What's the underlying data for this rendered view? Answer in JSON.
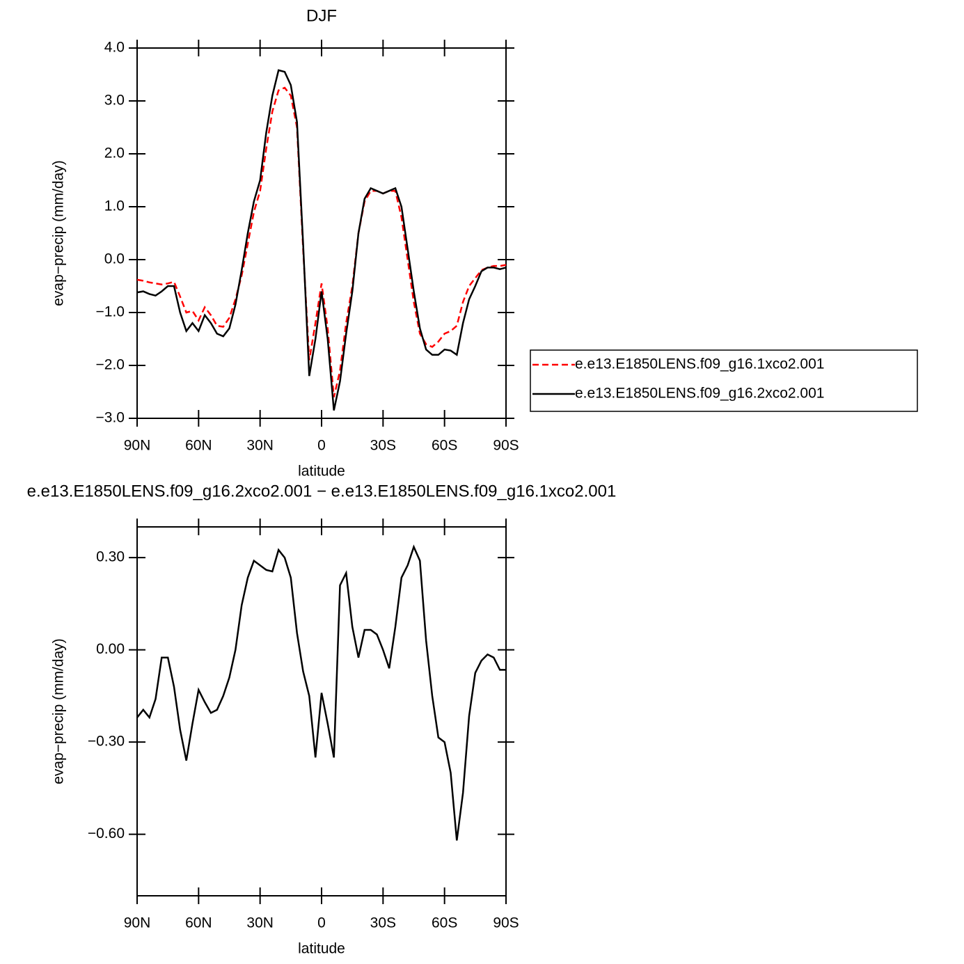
{
  "chart_data": [
    {
      "type": "line",
      "title": "DJF",
      "x_label": "latitude",
      "y_label": "evap−precip (mm/day)",
      "x": [
        90,
        87,
        84,
        81,
        78,
        75,
        72,
        69,
        66,
        63,
        60,
        57,
        54,
        51,
        48,
        45,
        42,
        39,
        36,
        33,
        30,
        27,
        24,
        21,
        18,
        15,
        12,
        9,
        6,
        3,
        0,
        -3,
        -6,
        -9,
        -12,
        -15,
        -18,
        -21,
        -24,
        -27,
        -30,
        -33,
        -36,
        -39,
        -42,
        -45,
        -48,
        -51,
        -54,
        -57,
        -60,
        -63,
        -66,
        -69,
        -72,
        -75,
        -78,
        -81,
        -84,
        -87,
        -90
      ],
      "xlim": [
        90,
        -90
      ],
      "xticks": [
        {
          "value": 90,
          "label": "90N"
        },
        {
          "value": 60,
          "label": "60N"
        },
        {
          "value": 30,
          "label": "30N"
        },
        0,
        {
          "value": -30,
          "label": "30S"
        },
        {
          "value": -60,
          "label": "60S"
        },
        {
          "value": -90,
          "label": "90S"
        }
      ],
      "ylim": [
        -3,
        4
      ],
      "yticks": [
        {
          "value": 4,
          "label": "4.0"
        },
        {
          "value": 3,
          "label": "3.0"
        },
        {
          "value": 2,
          "label": "2.0"
        },
        {
          "value": 1,
          "label": "1.0"
        },
        {
          "value": 0,
          "label": "0.0"
        },
        {
          "value": -1,
          "label": "−1.0"
        },
        {
          "value": -2,
          "label": "−2.0"
        },
        {
          "value": -3,
          "label": "−3.0"
        }
      ],
      "legend": "right",
      "series": [
        {
          "name": "e.e13.E1850LENS.f09_g16.1xco2.001",
          "color": "#ff0000",
          "line_style": "dashed",
          "values": [
            -0.38,
            -0.4,
            -0.43,
            -0.45,
            -0.47,
            -0.45,
            -0.42,
            -0.7,
            -1.0,
            -0.97,
            -1.15,
            -0.9,
            -1.05,
            -1.25,
            -1.27,
            -1.1,
            -0.75,
            -0.3,
            0.3,
            0.9,
            1.3,
            2.1,
            2.8,
            3.2,
            3.25,
            3.1,
            2.5,
            0.2,
            -1.9,
            -1.2,
            -0.45,
            -1.3,
            -2.6,
            -2.1,
            -1.2,
            -0.5,
            0.5,
            1.1,
            1.3,
            1.3,
            1.25,
            1.3,
            1.3,
            0.8,
            0.0,
            -0.8,
            -1.4,
            -1.6,
            -1.65,
            -1.55,
            -1.4,
            -1.35,
            -1.25,
            -0.8,
            -0.5,
            -0.35,
            -0.2,
            -0.15,
            -0.12,
            -0.12,
            -0.1
          ]
        },
        {
          "name": "e.e13.E1850LENS.f09_g16.2xco2.001",
          "color": "#000000",
          "line_style": "solid",
          "values": [
            -0.62,
            -0.6,
            -0.65,
            -0.68,
            -0.6,
            -0.5,
            -0.5,
            -1.0,
            -1.35,
            -1.2,
            -1.35,
            -1.05,
            -1.2,
            -1.4,
            -1.45,
            -1.3,
            -0.85,
            -0.2,
            0.5,
            1.1,
            1.5,
            2.4,
            3.1,
            3.58,
            3.55,
            3.3,
            2.6,
            0.3,
            -2.2,
            -1.5,
            -0.6,
            -1.5,
            -2.85,
            -2.3,
            -1.4,
            -0.6,
            0.5,
            1.15,
            1.35,
            1.3,
            1.25,
            1.3,
            1.35,
            1.0,
            0.2,
            -0.6,
            -1.3,
            -1.7,
            -1.8,
            -1.8,
            -1.7,
            -1.72,
            -1.8,
            -1.2,
            -0.75,
            -0.5,
            -0.22,
            -0.15,
            -0.15,
            -0.18,
            -0.15
          ]
        }
      ]
    },
    {
      "type": "line",
      "title": "e.e13.E1850LENS.f09_g16.2xco2.001 − e.e13.E1850LENS.f09_g16.1xco2.001",
      "x_label": "latitude",
      "y_label": "evap−precip (mm/day)",
      "x": [
        90,
        87,
        84,
        81,
        78,
        75,
        72,
        69,
        66,
        63,
        60,
        57,
        54,
        51,
        48,
        45,
        42,
        39,
        36,
        33,
        30,
        27,
        24,
        21,
        18,
        15,
        12,
        9,
        6,
        3,
        0,
        -3,
        -6,
        -9,
        -12,
        -15,
        -18,
        -21,
        -24,
        -27,
        -30,
        -33,
        -36,
        -39,
        -42,
        -45,
        -48,
        -51,
        -54,
        -57,
        -60,
        -63,
        -66,
        -69,
        -72,
        -75,
        -78,
        -81,
        -84,
        -87,
        -90
      ],
      "xlim": [
        90,
        -90
      ],
      "xticks": [
        {
          "value": 90,
          "label": "90N"
        },
        {
          "value": 60,
          "label": "60N"
        },
        {
          "value": 30,
          "label": "30N"
        },
        0,
        {
          "value": -30,
          "label": "30S"
        },
        {
          "value": -60,
          "label": "60S"
        },
        {
          "value": -90,
          "label": "90S"
        }
      ],
      "ylim": [
        -0.8,
        0.4
      ],
      "yticks": [
        {
          "value": 0.3,
          "label": "0.30"
        },
        {
          "value": 0,
          "label": "0.00"
        },
        {
          "value": -0.3,
          "label": "−0.30"
        },
        {
          "value": -0.6,
          "label": "−0.60"
        }
      ],
      "series": [
        {
          "color": "#000000",
          "line_style": "solid",
          "values": [
            -0.22,
            -0.195,
            -0.22,
            -0.16,
            -0.025,
            -0.025,
            -0.12,
            -0.26,
            -0.36,
            -0.24,
            -0.13,
            -0.17,
            -0.205,
            -0.195,
            -0.15,
            -0.09,
            0.0,
            0.145,
            0.235,
            0.29,
            0.275,
            0.26,
            0.255,
            0.325,
            0.3,
            0.235,
            0.055,
            -0.07,
            -0.15,
            -0.35,
            -0.14,
            -0.24,
            -0.35,
            0.21,
            0.25,
            0.075,
            -0.025,
            0.065,
            0.065,
            0.05,
            0.0,
            -0.06,
            0.075,
            0.235,
            0.275,
            0.335,
            0.29,
            0.03,
            -0.15,
            -0.285,
            -0.3,
            -0.4,
            -0.62,
            -0.465,
            -0.215,
            -0.075,
            -0.035,
            -0.015,
            -0.025,
            -0.065,
            -0.065
          ]
        }
      ]
    }
  ]
}
